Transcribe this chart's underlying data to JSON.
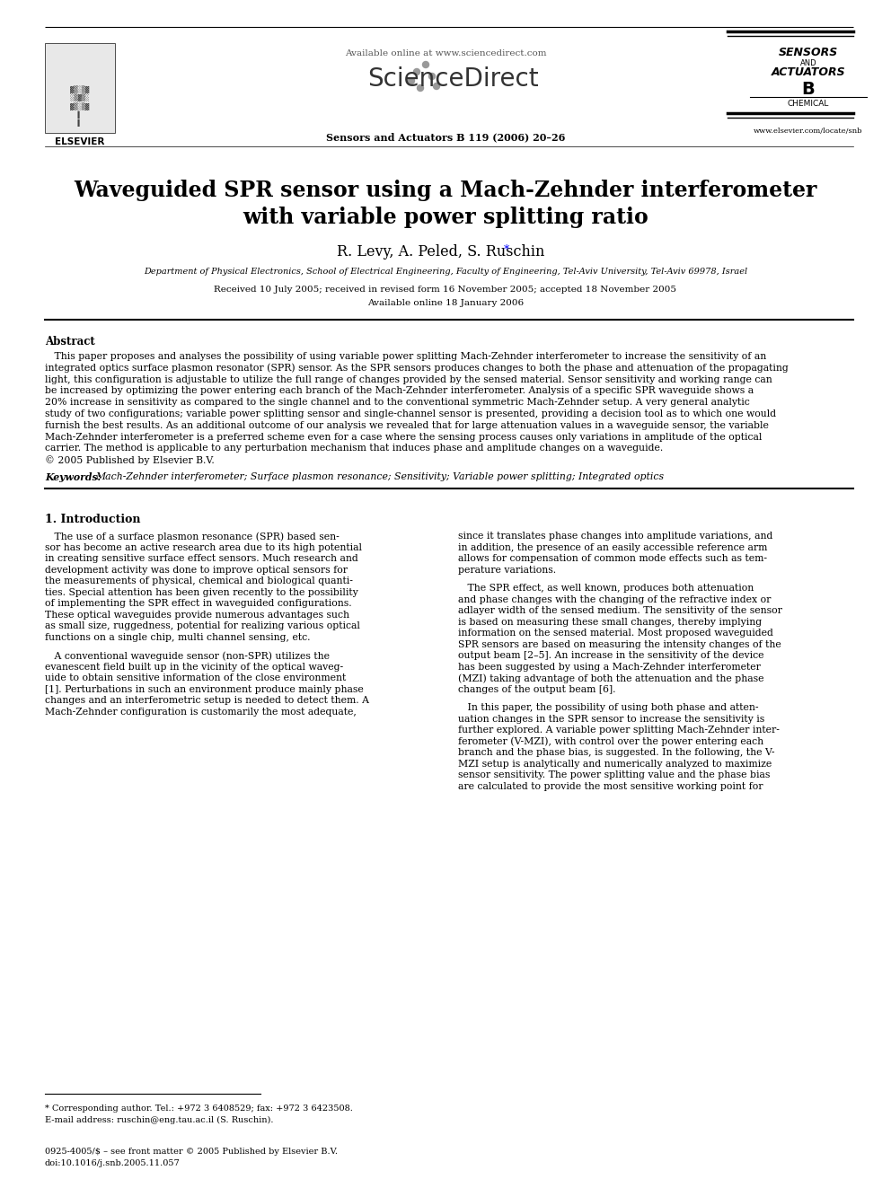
{
  "title_line1": "Waveguided SPR sensor using a Mach-Zehnder interferometer",
  "title_line2": "with variable power splitting ratio",
  "authors": "R. Levy, A. Peled, S. Ruschin",
  "authors_asterisk": "*",
  "affiliation": "Department of Physical Electronics, School of Electrical Engineering, Faculty of Engineering, Tel-Aviv University, Tel-Aviv 69978, Israel",
  "received": "Received 10 July 2005; received in revised form 16 November 2005; accepted 18 November 2005",
  "available": "Available online 18 January 2006",
  "journal": "Sensors and Actuators B 119 (2006) 20–26",
  "sciencedirect_avail": "Available online at www.sciencedirect.com",
  "sciencedirect_logo": "ScienceDirect",
  "elsevier_text": "ELSEVIER",
  "sensors_line1": "SENSORS",
  "sensors_line2": "AND",
  "sensors_line3": "ACTUATORS",
  "sensors_line4": "B",
  "sensors_line5": "CHEMICAL",
  "website": "www.elsevier.com/locate/snb",
  "abstract_title": "Abstract",
  "keywords_label": "Keywords:",
  "keywords_text": "Mach-Zehnder interferometer; Surface plasmon resonance; Sensitivity; Variable power splitting; Integrated optics",
  "intro_title": "1. Introduction",
  "footnote_star": "* Corresponding author. Tel.: +972 3 6408529; fax: +972 3 6423508.",
  "footnote_email": "E-mail address: ruschin@eng.tau.ac.il (S. Ruschin).",
  "footer_line1": "0925-4005/$ – see front matter © 2005 Published by Elsevier B.V.",
  "footer_line2": "doi:10.1016/j.snb.2005.11.057",
  "abstract_lines": [
    "   This paper proposes and analyses the possibility of using variable power splitting Mach-Zehnder interferometer to increase the sensitivity of an",
    "integrated optics surface plasmon resonator (SPR) sensor. As the SPR sensors produces changes to both the phase and attenuation of the propagating",
    "light, this configuration is adjustable to utilize the full range of changes provided by the sensed material. Sensor sensitivity and working range can",
    "be increased by optimizing the power entering each branch of the Mach-Zehnder interferometer. Analysis of a specific SPR waveguide shows a",
    "20% increase in sensitivity as compared to the single channel and to the conventional symmetric Mach-Zehnder setup. A very general analytic",
    "study of two configurations; variable power splitting sensor and single-channel sensor is presented, providing a decision tool as to which one would",
    "furnish the best results. As an additional outcome of our analysis we revealed that for large attenuation values in a waveguide sensor, the variable",
    "Mach-Zehnder interferometer is a preferred scheme even for a case where the sensing process causes only variations in amplitude of the optical",
    "carrier. The method is applicable to any perturbation mechanism that induces phase and amplitude changes on a waveguide.",
    "© 2005 Published by Elsevier B.V."
  ],
  "left_col_p1": [
    "   The use of a surface plasmon resonance (SPR) based sen-",
    "sor has become an active research area due to its high potential",
    "in creating sensitive surface effect sensors. Much research and",
    "development activity was done to improve optical sensors for",
    "the measurements of physical, chemical and biological quanti-",
    "ties. Special attention has been given recently to the possibility",
    "of implementing the SPR effect in waveguided configurations.",
    "These optical waveguides provide numerous advantages such",
    "as small size, ruggedness, potential for realizing various optical",
    "functions on a single chip, multi channel sensing, etc."
  ],
  "left_col_p2": [
    "   A conventional waveguide sensor (non-SPR) utilizes the",
    "evanescent field built up in the vicinity of the optical waveg-",
    "uide to obtain sensitive information of the close environment",
    "[1]. Perturbations in such an environment produce mainly phase",
    "changes and an interferometric setup is needed to detect them. A",
    "Mach-Zehnder configuration is customarily the most adequate,"
  ],
  "right_col_p1": [
    "since it translates phase changes into amplitude variations, and",
    "in addition, the presence of an easily accessible reference arm",
    "allows for compensation of common mode effects such as tem-",
    "perature variations."
  ],
  "right_col_p2": [
    "   The SPR effect, as well known, produces both attenuation",
    "and phase changes with the changing of the refractive index or",
    "adlayer width of the sensed medium. The sensitivity of the sensor",
    "is based on measuring these small changes, thereby implying",
    "information on the sensed material. Most proposed waveguided",
    "SPR sensors are based on measuring the intensity changes of the",
    "output beam [2–5]. An increase in the sensitivity of the device",
    "has been suggested by using a Mach-Zehnder interferometer",
    "(MZI) taking advantage of both the attenuation and the phase",
    "changes of the output beam [6]."
  ],
  "right_col_p3": [
    "   In this paper, the possibility of using both phase and atten-",
    "uation changes in the SPR sensor to increase the sensitivity is",
    "further explored. A variable power splitting Mach-Zehnder inter-",
    "ferometer (V-MZI), with control over the power entering each",
    "branch and the phase bias, is suggested. In the following, the V-",
    "MZI setup is analytically and numerically analyzed to maximize",
    "sensor sensitivity. The power splitting value and the phase bias",
    "are calculated to provide the most sensitive working point for"
  ],
  "bg_color": "#ffffff"
}
